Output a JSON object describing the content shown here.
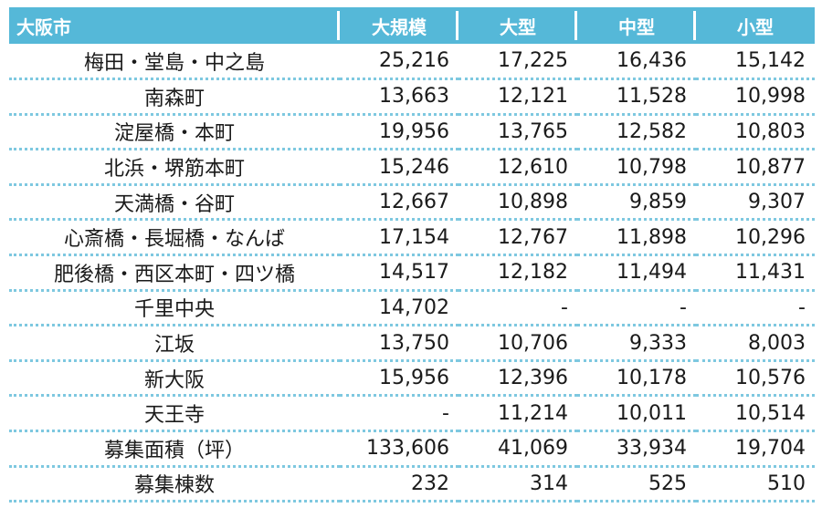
{
  "table": {
    "headers": [
      "大阪市",
      "大規模",
      "大型",
      "中型",
      "小型"
    ],
    "rows": [
      [
        "梅田・堂島・中之島",
        "25,216",
        "17,225",
        "16,436",
        "15,142"
      ],
      [
        "南森町",
        "13,663",
        "12,121",
        "11,528",
        "10,998"
      ],
      [
        "淀屋橋・本町",
        "19,956",
        "13,765",
        "12,582",
        "10,803"
      ],
      [
        "北浜・堺筋本町",
        "15,246",
        "12,610",
        "10,798",
        "10,877"
      ],
      [
        "天満橋・谷町",
        "12,667",
        "10,898",
        "9,859",
        "9,307"
      ],
      [
        "心斎橋・長堀橋・なんば",
        "17,154",
        "12,767",
        "11,898",
        "10,296"
      ],
      [
        "肥後橋・西区本町・四ツ橋",
        "14,517",
        "12,182",
        "11,494",
        "11,431"
      ],
      [
        "千里中央",
        "14,702",
        "-",
        "-",
        "-"
      ],
      [
        "江坂",
        "13,750",
        "10,706",
        "9,333",
        "8,003"
      ],
      [
        "新大阪",
        "15,956",
        "12,396",
        "10,178",
        "10,576"
      ],
      [
        "天王寺",
        "-",
        "11,214",
        "10,011",
        "10,514"
      ],
      [
        "募集面積（坪）",
        "133,606",
        "41,069",
        "33,934",
        "19,704"
      ],
      [
        "募集棟数",
        "232",
        "314",
        "525",
        "510"
      ]
    ]
  },
  "colors": {
    "header_bg": "#55b8d8",
    "header_text": "#ffffff",
    "row_border": "#7ec8e0"
  }
}
